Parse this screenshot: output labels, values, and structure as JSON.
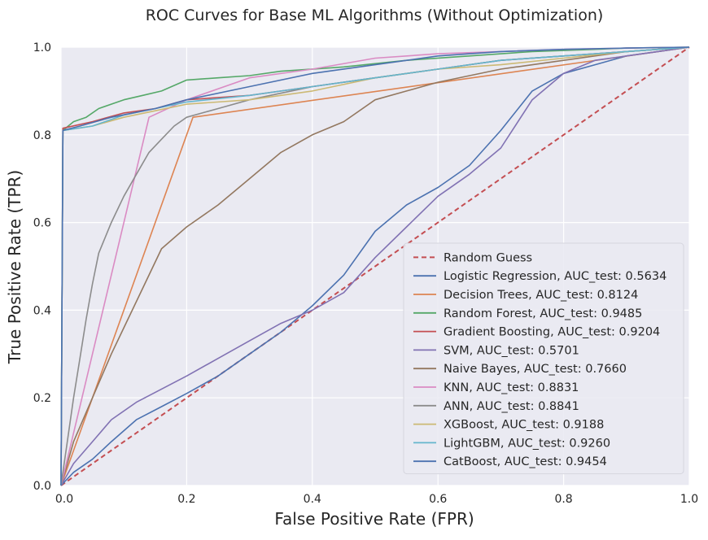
{
  "chart_data": {
    "type": "line",
    "title": "ROC Curves for Base ML Algorithms (Without Optimization)",
    "xlabel": "False Positive Rate (FPR)",
    "ylabel": "True Positive Rate (TPR)",
    "xlim": [
      0.0,
      1.0
    ],
    "ylim": [
      0.0,
      1.0
    ],
    "xticks": [
      "0.0",
      "0.2",
      "0.4",
      "0.6",
      "0.8",
      "1.0"
    ],
    "yticks": [
      "0.0",
      "0.2",
      "0.4",
      "0.6",
      "0.8",
      "1.0"
    ],
    "grid": true,
    "legend_position": "lower-right",
    "series": [
      {
        "name": "Random Guess",
        "color": "#c44e52",
        "dash": true,
        "x": [
          0,
          1
        ],
        "y": [
          0,
          1
        ]
      },
      {
        "name": "Logistic Regression, AUC_test: 0.5634",
        "color": "#4c72b0",
        "x": [
          0,
          0.02,
          0.05,
          0.08,
          0.12,
          0.16,
          0.2,
          0.25,
          0.3,
          0.35,
          0.4,
          0.45,
          0.5,
          0.55,
          0.6,
          0.65,
          0.7,
          0.75,
          0.8,
          0.85,
          0.9,
          0.95,
          1.0
        ],
        "y": [
          0,
          0.03,
          0.06,
          0.1,
          0.15,
          0.18,
          0.21,
          0.25,
          0.3,
          0.35,
          0.41,
          0.48,
          0.58,
          0.64,
          0.68,
          0.73,
          0.81,
          0.9,
          0.94,
          0.96,
          0.98,
          0.99,
          1.0
        ]
      },
      {
        "name": "Decision Trees, AUC_test: 0.8124",
        "color": "#dd8452",
        "x": [
          0,
          0.21,
          1.0
        ],
        "y": [
          0,
          0.84,
          1.0
        ]
      },
      {
        "name": "Random Forest, AUC_test: 0.9485",
        "color": "#55a868",
        "x": [
          0,
          0.003,
          0.02,
          0.04,
          0.06,
          0.1,
          0.13,
          0.16,
          0.2,
          0.25,
          0.3,
          0.35,
          0.45,
          0.55,
          0.65,
          0.75,
          0.85,
          0.9,
          1.0
        ],
        "y": [
          0,
          0.81,
          0.83,
          0.84,
          0.86,
          0.88,
          0.89,
          0.9,
          0.925,
          0.93,
          0.935,
          0.945,
          0.955,
          0.97,
          0.98,
          0.99,
          0.995,
          0.998,
          1.0
        ]
      },
      {
        "name": "Gradient Boosting, AUC_test: 0.9204",
        "color": "#c44e52",
        "x": [
          0,
          0.003,
          0.05,
          0.1,
          0.15,
          0.2,
          0.3,
          0.4,
          0.5,
          0.6,
          0.7,
          0.8,
          0.9,
          1.0
        ],
        "y": [
          0,
          0.815,
          0.83,
          0.85,
          0.86,
          0.88,
          0.89,
          0.91,
          0.93,
          0.95,
          0.97,
          0.98,
          0.99,
          1.0
        ]
      },
      {
        "name": "SVM, AUC_test: 0.5701",
        "color": "#8172b3",
        "x": [
          0,
          0.02,
          0.05,
          0.08,
          0.12,
          0.16,
          0.2,
          0.25,
          0.3,
          0.35,
          0.4,
          0.45,
          0.5,
          0.55,
          0.6,
          0.65,
          0.7,
          0.75,
          0.8,
          0.85,
          0.9,
          0.95,
          1.0
        ],
        "y": [
          0,
          0.05,
          0.1,
          0.15,
          0.19,
          0.22,
          0.25,
          0.29,
          0.33,
          0.37,
          0.4,
          0.44,
          0.52,
          0.59,
          0.66,
          0.71,
          0.77,
          0.88,
          0.94,
          0.97,
          0.98,
          0.99,
          1.0
        ]
      },
      {
        "name": "Naive Bayes, AUC_test: 0.7660",
        "color": "#937860",
        "x": [
          0,
          0.02,
          0.05,
          0.08,
          0.1,
          0.13,
          0.16,
          0.2,
          0.25,
          0.3,
          0.35,
          0.4,
          0.45,
          0.5,
          0.55,
          0.6,
          0.7,
          0.8,
          0.9,
          1.0
        ],
        "y": [
          0,
          0.1,
          0.2,
          0.3,
          0.36,
          0.45,
          0.54,
          0.59,
          0.64,
          0.7,
          0.76,
          0.8,
          0.83,
          0.88,
          0.9,
          0.92,
          0.95,
          0.97,
          0.99,
          1.0
        ]
      },
      {
        "name": "KNN, AUC_test: 0.8831",
        "color": "#da8bc3",
        "x": [
          0,
          0.14,
          0.2,
          0.3,
          0.4,
          0.5,
          0.6,
          0.7,
          0.8,
          0.9,
          1.0
        ],
        "y": [
          0,
          0.84,
          0.88,
          0.93,
          0.95,
          0.975,
          0.985,
          0.99,
          0.995,
          0.998,
          1.0
        ]
      },
      {
        "name": "ANN, AUC_test: 0.8841",
        "color": "#8c8c8c",
        "x": [
          0,
          0.01,
          0.02,
          0.03,
          0.04,
          0.05,
          0.06,
          0.08,
          0.1,
          0.12,
          0.14,
          0.16,
          0.18,
          0.2,
          0.25,
          0.3,
          0.4,
          0.5,
          0.6,
          0.7,
          0.8,
          0.9,
          1.0
        ],
        "y": [
          0,
          0.1,
          0.2,
          0.29,
          0.38,
          0.46,
          0.53,
          0.6,
          0.66,
          0.71,
          0.76,
          0.79,
          0.82,
          0.84,
          0.86,
          0.88,
          0.91,
          0.93,
          0.95,
          0.97,
          0.98,
          0.99,
          1.0
        ]
      },
      {
        "name": "XGBoost, AUC_test: 0.9188",
        "color": "#ccb974",
        "x": [
          0,
          0.003,
          0.05,
          0.1,
          0.15,
          0.2,
          0.3,
          0.4,
          0.5,
          0.6,
          0.7,
          0.8,
          0.9,
          1.0
        ],
        "y": [
          0,
          0.81,
          0.82,
          0.84,
          0.855,
          0.87,
          0.88,
          0.9,
          0.93,
          0.95,
          0.96,
          0.975,
          0.99,
          1.0
        ]
      },
      {
        "name": "LightGBM, AUC_test: 0.9260",
        "color": "#64b5cd",
        "x": [
          0,
          0.003,
          0.05,
          0.1,
          0.15,
          0.2,
          0.3,
          0.4,
          0.5,
          0.6,
          0.7,
          0.8,
          0.9,
          1.0
        ],
        "y": [
          0,
          0.81,
          0.82,
          0.845,
          0.86,
          0.875,
          0.89,
          0.91,
          0.93,
          0.95,
          0.97,
          0.98,
          0.99,
          1.0
        ]
      },
      {
        "name": "CatBoost, AUC_test: 0.9454",
        "color": "#4c72b0",
        "x": [
          0,
          0.003,
          0.03,
          0.08,
          0.15,
          0.2,
          0.3,
          0.4,
          0.5,
          0.6,
          0.7,
          0.8,
          0.9,
          1.0
        ],
        "y": [
          0,
          0.81,
          0.82,
          0.84,
          0.86,
          0.88,
          0.91,
          0.94,
          0.96,
          0.98,
          0.99,
          0.995,
          0.998,
          1.0
        ]
      }
    ]
  }
}
